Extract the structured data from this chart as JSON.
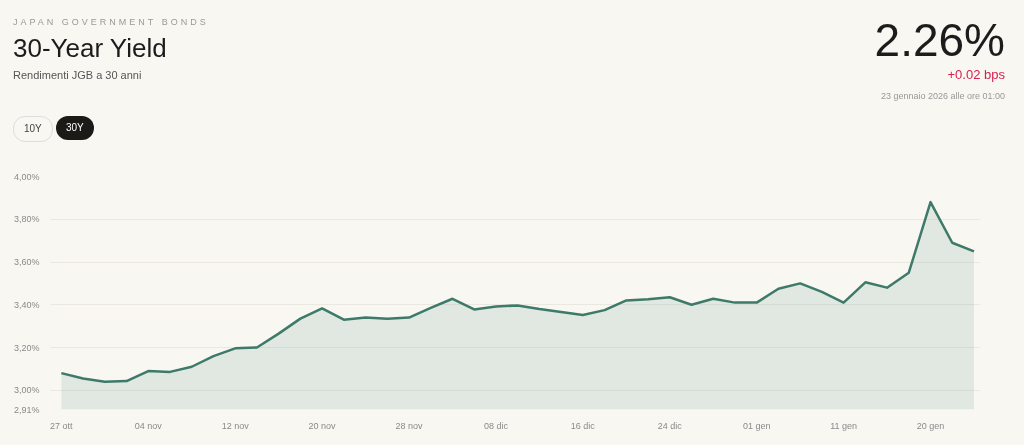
{
  "chart_data": {
    "type": "area",
    "title": "30-Year Yield",
    "subtitle": "Rendimenti JGB a 30 anni",
    "annotations": [
      "JAPAN GOVERNMENT BONDS",
      "10Y",
      "30Y",
      "2.26%",
      "+0.02 bps",
      "23 gennaio 2026 alle ore 01:00"
    ],
    "categories": [
      "27 ott",
      null,
      null,
      null,
      "04 nov",
      null,
      null,
      null,
      "12 nov",
      null,
      null,
      null,
      "20 nov",
      null,
      null,
      null,
      "28 nov",
      null,
      null,
      null,
      "08 dic",
      null,
      null,
      null,
      "16 dic",
      null,
      null,
      null,
      "24 dic",
      null,
      null,
      null,
      "01 gen",
      null,
      null,
      null,
      "11 gen",
      null,
      null,
      null,
      "20 gen",
      null,
      null
    ],
    "series": [
      {
        "color": "#3d7a6a",
        "values": [
          3.08,
          3.055,
          3.04,
          3.043,
          3.09,
          3.086,
          3.11,
          3.16,
          3.196,
          3.2,
          3.265,
          3.335,
          3.383,
          3.33,
          3.34,
          3.335,
          3.34,
          3.385,
          3.428,
          3.378,
          3.392,
          3.397,
          3.38,
          3.366,
          3.352,
          3.375,
          3.42,
          3.426,
          3.435,
          3.4,
          3.428,
          3.41,
          3.41,
          3.475,
          3.5,
          3.46,
          3.41,
          3.505,
          3.48,
          3.55,
          3.88,
          3.69,
          3.65
        ]
      }
    ],
    "ylim": [
      2.91,
      4.0
    ],
    "yticks": [
      {
        "value": 2.91,
        "label": "2,91%"
      },
      {
        "value": 3.0,
        "label": "3,00%"
      },
      {
        "value": 3.2,
        "label": "3,20%"
      },
      {
        "value": 3.4,
        "label": "3,40%"
      },
      {
        "value": 3.6,
        "label": "3,60%"
      },
      {
        "value": 3.8,
        "label": "3,80%"
      },
      {
        "value": 4.0,
        "label": "4,00%"
      }
    ],
    "grid": "y"
  }
}
